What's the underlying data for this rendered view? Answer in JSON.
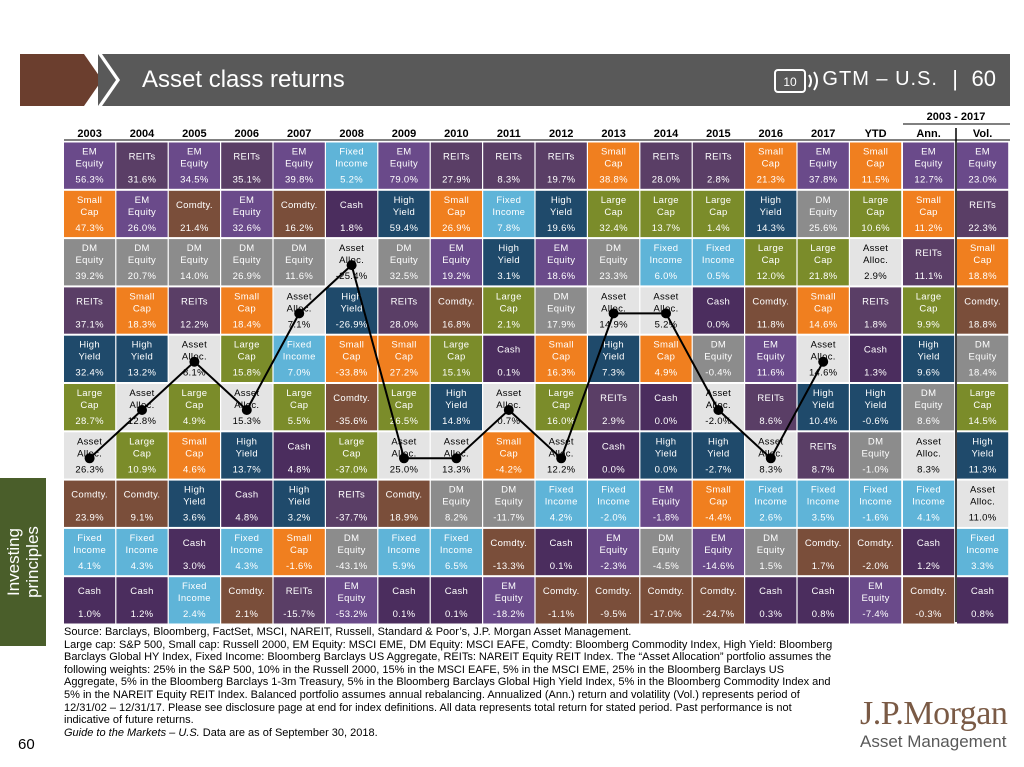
{
  "header": {
    "title": "Asset class returns",
    "brand": "GTM – U.S.",
    "separator": "|",
    "page": "60",
    "icon": "cassette-10-icon",
    "icon_label": "10"
  },
  "sidebar": {
    "label_line1": "Investing",
    "label_line2": "principles"
  },
  "colors": {
    "EM Equity": "#6a4a8a",
    "REITs": "#5a3e66",
    "Small Cap": "#f07f1f",
    "DM Equity": "#8c8c8c",
    "Comdty.": "#7a4e3a",
    "Cash": "#4b2d5e",
    "High Yield": "#1f4a6b",
    "Large Cap": "#7b8c2a",
    "Fixed Income": "#5fb4d8",
    "Asset Alloc.": "#e4e4e4",
    "header": "#595959",
    "accent": "#6b3e2e"
  },
  "chart_data": {
    "type": "table",
    "title": "Asset class returns",
    "period_header": "2003 - 2017",
    "columns": [
      "2003",
      "2004",
      "2005",
      "2006",
      "2007",
      "2008",
      "2009",
      "2010",
      "2011",
      "2012",
      "2013",
      "2014",
      "2015",
      "2016",
      "2017",
      "YTD",
      "Ann.",
      "Vol."
    ],
    "grid": [
      [
        [
          "EM\nEquity",
          "56.3%"
        ],
        [
          "REITs",
          "31.6%"
        ],
        [
          "EM\nEquity",
          "34.5%"
        ],
        [
          "REITs",
          "35.1%"
        ],
        [
          "EM\nEquity",
          "39.8%"
        ],
        [
          "Fixed\nIncome",
          "5.2%"
        ],
        [
          "EM\nEquity",
          "79.0%"
        ],
        [
          "REITs",
          "27.9%"
        ],
        [
          "REITs",
          "8.3%"
        ],
        [
          "REITs",
          "19.7%"
        ],
        [
          "Small\nCap",
          "38.8%"
        ],
        [
          "REITs",
          "28.0%"
        ],
        [
          "REITs",
          "2.8%"
        ],
        [
          "Small\nCap",
          "21.3%"
        ],
        [
          "EM\nEquity",
          "37.8%"
        ],
        [
          "Small\nCap",
          "11.5%"
        ],
        [
          "EM\nEquity",
          "12.7%"
        ],
        [
          "EM\nEquity",
          "23.0%"
        ]
      ],
      [
        [
          "Small\nCap",
          "47.3%"
        ],
        [
          "EM\nEquity",
          "26.0%"
        ],
        [
          "Comdty.",
          "21.4%"
        ],
        [
          "EM\nEquity",
          "32.6%"
        ],
        [
          "Comdty.",
          "16.2%"
        ],
        [
          "Cash",
          "1.8%"
        ],
        [
          "High\nYield",
          "59.4%"
        ],
        [
          "Small\nCap",
          "26.9%"
        ],
        [
          "Fixed\nIncome",
          "7.8%"
        ],
        [
          "High\nYield",
          "19.6%"
        ],
        [
          "Large\nCap",
          "32.4%"
        ],
        [
          "Large\nCap",
          "13.7%"
        ],
        [
          "Large\nCap",
          "1.4%"
        ],
        [
          "High\nYield",
          "14.3%"
        ],
        [
          "DM\nEquity",
          "25.6%"
        ],
        [
          "Large\nCap",
          "10.6%"
        ],
        [
          "Small\nCap",
          "11.2%"
        ],
        [
          "REITs",
          "22.3%"
        ]
      ],
      [
        [
          "DM\nEquity",
          "39.2%"
        ],
        [
          "DM\nEquity",
          "20.7%"
        ],
        [
          "DM\nEquity",
          "14.0%"
        ],
        [
          "DM\nEquity",
          "26.9%"
        ],
        [
          "DM\nEquity",
          "11.6%"
        ],
        [
          "Asset\nAlloc.",
          "-25.4%"
        ],
        [
          "DM\nEquity",
          "32.5%"
        ],
        [
          "EM\nEquity",
          "19.2%"
        ],
        [
          "High\nYield",
          "3.1%"
        ],
        [
          "EM\nEquity",
          "18.6%"
        ],
        [
          "DM\nEquity",
          "23.3%"
        ],
        [
          "Fixed\nIncome",
          "6.0%"
        ],
        [
          "Fixed\nIncome",
          "0.5%"
        ],
        [
          "Large\nCap",
          "12.0%"
        ],
        [
          "Large\nCap",
          "21.8%"
        ],
        [
          "Asset\nAlloc.",
          "2.9%"
        ],
        [
          "REITs",
          "11.1%"
        ],
        [
          "Small\nCap",
          "18.8%"
        ]
      ],
      [
        [
          "REITs",
          "37.1%"
        ],
        [
          "Small\nCap",
          "18.3%"
        ],
        [
          "REITs",
          "12.2%"
        ],
        [
          "Small\nCap",
          "18.4%"
        ],
        [
          "Asset\nAlloc.",
          "7.1%"
        ],
        [
          "High\nYield",
          "-26.9%"
        ],
        [
          "REITs",
          "28.0%"
        ],
        [
          "Comdty.",
          "16.8%"
        ],
        [
          "Large\nCap",
          "2.1%"
        ],
        [
          "DM\nEquity",
          "17.9%"
        ],
        [
          "Asset\nAlloc.",
          "14.9%"
        ],
        [
          "Asset\nAlloc.",
          "5.2%"
        ],
        [
          "Cash",
          "0.0%"
        ],
        [
          "Comdty.",
          "11.8%"
        ],
        [
          "Small\nCap",
          "14.6%"
        ],
        [
          "REITs",
          "1.8%"
        ],
        [
          "Large\nCap",
          "9.9%"
        ],
        [
          "Comdty.",
          "18.8%"
        ]
      ],
      [
        [
          "High\nYield",
          "32.4%"
        ],
        [
          "High\nYield",
          "13.2%"
        ],
        [
          "Asset\nAlloc.",
          "8.1%"
        ],
        [
          "Large\nCap",
          "15.8%"
        ],
        [
          "Fixed\nIncome",
          "7.0%"
        ],
        [
          "Small\nCap",
          "-33.8%"
        ],
        [
          "Small\nCap",
          "27.2%"
        ],
        [
          "Large\nCap",
          "15.1%"
        ],
        [
          "Cash",
          "0.1%"
        ],
        [
          "Small\nCap",
          "16.3%"
        ],
        [
          "High\nYield",
          "7.3%"
        ],
        [
          "Small\nCap",
          "4.9%"
        ],
        [
          "DM\nEquity",
          "-0.4%"
        ],
        [
          "EM\nEquity",
          "11.6%"
        ],
        [
          "Asset\nAlloc.",
          "14.6%"
        ],
        [
          "Cash",
          "1.3%"
        ],
        [
          "High\nYield",
          "9.6%"
        ],
        [
          "DM\nEquity",
          "18.4%"
        ]
      ],
      [
        [
          "Large\nCap",
          "28.7%"
        ],
        [
          "Asset\nAlloc.",
          "12.8%"
        ],
        [
          "Large\nCap",
          "4.9%"
        ],
        [
          "Asset\nAlloc.",
          "15.3%"
        ],
        [
          "Large\nCap",
          "5.5%"
        ],
        [
          "Comdty.",
          "-35.6%"
        ],
        [
          "Large\nCap",
          "26.5%"
        ],
        [
          "High\nYield",
          "14.8%"
        ],
        [
          "Asset\nAlloc.",
          "0.7%"
        ],
        [
          "Large\nCap",
          "16.0%"
        ],
        [
          "REITs",
          "2.9%"
        ],
        [
          "Cash",
          "0.0%"
        ],
        [
          "Asset\nAlloc.",
          "-2.0%"
        ],
        [
          "REITs",
          "8.6%"
        ],
        [
          "High\nYield",
          "10.4%"
        ],
        [
          "High\nYield",
          "-0.6%"
        ],
        [
          "DM\nEquity",
          "8.6%"
        ],
        [
          "Large\nCap",
          "14.5%"
        ]
      ],
      [
        [
          "Asset\nAlloc.",
          "26.3%"
        ],
        [
          "Large\nCap",
          "10.9%"
        ],
        [
          "Small\nCap",
          "4.6%"
        ],
        [
          "High\nYield",
          "13.7%"
        ],
        [
          "Cash",
          "4.8%"
        ],
        [
          "Large\nCap",
          "-37.0%"
        ],
        [
          "Asset\nAlloc.",
          "25.0%"
        ],
        [
          "Asset\nAlloc.",
          "13.3%"
        ],
        [
          "Small\nCap",
          "-4.2%"
        ],
        [
          "Asset\nAlloc.",
          "12.2%"
        ],
        [
          "Cash",
          "0.0%"
        ],
        [
          "High\nYield",
          "0.0%"
        ],
        [
          "High\nYield",
          "-2.7%"
        ],
        [
          "Asset\nAlloc.",
          "8.3%"
        ],
        [
          "REITs",
          "8.7%"
        ],
        [
          "DM\nEquity",
          "-1.0%"
        ],
        [
          "Asset\nAlloc.",
          "8.3%"
        ],
        [
          "High\nYield",
          "11.3%"
        ]
      ],
      [
        [
          "Comdty.",
          "23.9%"
        ],
        [
          "Comdty.",
          "9.1%"
        ],
        [
          "High\nYield",
          "3.6%"
        ],
        [
          "Cash",
          "4.8%"
        ],
        [
          "High\nYield",
          "3.2%"
        ],
        [
          "REITs",
          "-37.7%"
        ],
        [
          "Comdty.",
          "18.9%"
        ],
        [
          "DM\nEquity",
          "8.2%"
        ],
        [
          "DM\nEquity",
          "-11.7%"
        ],
        [
          "Fixed\nIncome",
          "4.2%"
        ],
        [
          "Fixed\nIncome",
          "-2.0%"
        ],
        [
          "EM\nEquity",
          "-1.8%"
        ],
        [
          "Small\nCap",
          "-4.4%"
        ],
        [
          "Fixed\nIncome",
          "2.6%"
        ],
        [
          "Fixed\nIncome",
          "3.5%"
        ],
        [
          "Fixed\nIncome",
          "-1.6%"
        ],
        [
          "Fixed\nIncome",
          "4.1%"
        ],
        [
          "Asset\nAlloc.",
          "11.0%"
        ]
      ],
      [
        [
          "Fixed\nIncome",
          "4.1%"
        ],
        [
          "Fixed\nIncome",
          "4.3%"
        ],
        [
          "Cash",
          "3.0%"
        ],
        [
          "Fixed\nIncome",
          "4.3%"
        ],
        [
          "Small\nCap",
          "-1.6%"
        ],
        [
          "DM\nEquity",
          "-43.1%"
        ],
        [
          "Fixed\nIncome",
          "5.9%"
        ],
        [
          "Fixed\nIncome",
          "6.5%"
        ],
        [
          "Comdty.",
          "-13.3%"
        ],
        [
          "Cash",
          "0.1%"
        ],
        [
          "EM\nEquity",
          "-2.3%"
        ],
        [
          "DM\nEquity",
          "-4.5%"
        ],
        [
          "EM\nEquity",
          "-14.6%"
        ],
        [
          "DM\nEquity",
          "1.5%"
        ],
        [
          "Comdty.",
          "1.7%"
        ],
        [
          "Comdty.",
          "-2.0%"
        ],
        [
          "Cash",
          "1.2%"
        ],
        [
          "Fixed\nIncome",
          "3.3%"
        ]
      ],
      [
        [
          "Cash",
          "1.0%"
        ],
        [
          "Cash",
          "1.2%"
        ],
        [
          "Fixed\nIncome",
          "2.4%"
        ],
        [
          "Comdty.",
          "2.1%"
        ],
        [
          "REITs",
          "-15.7%"
        ],
        [
          "EM\nEquity",
          "-53.2%"
        ],
        [
          "Cash",
          "0.1%"
        ],
        [
          "Cash",
          "0.1%"
        ],
        [
          "EM\nEquity",
          "-18.2%"
        ],
        [
          "Comdty.",
          "-1.1%"
        ],
        [
          "Comdty.",
          "-9.5%"
        ],
        [
          "Comdty.",
          "-17.0%"
        ],
        [
          "Comdty.",
          "-24.7%"
        ],
        [
          "Cash",
          "0.3%"
        ],
        [
          "Cash",
          "0.8%"
        ],
        [
          "EM\nEquity",
          "-7.4%"
        ],
        [
          "Comdty.",
          "-0.3%"
        ],
        [
          "Cash",
          "0.8%"
        ]
      ]
    ],
    "asset_alloc_rank_by_year": [
      7,
      6,
      5,
      6,
      4,
      3,
      7,
      7,
      6,
      7,
      4,
      4,
      6,
      7,
      5
    ]
  },
  "footer": {
    "source_line": "Source: Barclays, Bloomberg, FactSet, MSCI, NAREIT, Russell, Standard & Poor’s, J.P. Morgan Asset Management.",
    "notes": "Large cap: S&P 500, Small cap: Russell 2000, EM Equity: MSCI EME, DM Equity: MSCI EAFE, Comdty: Bloomberg Commodity Index, High Yield: Bloomberg Barclays Global HY Index, Fixed Income: Bloomberg Barclays US Aggregate, REITs: NAREIT Equity REIT Index. The “Asset Allocation” portfolio assumes the following weights: 25% in the S&P 500, 10% in the Russell 2000, 15% in the MSCI EAFE, 5% in the MSCI EME, 25% in the Bloomberg Barclays US Aggregate, 5% in the Bloomberg Barclays 1-3m Treasury, 5% in the Bloomberg Barclays Global High Yield Index, 5% in the Bloomberg Commodity Index and 5% in the NAREIT Equity REIT Index. Balanced portfolio assumes annual rebalancing. Annualized (Ann.) return and volatility (Vol.) represents period of 12/31/02 – 12/31/17. Please see disclosure page at end for index definitions. All data represents total return for stated period. Past performance is not indicative of future returns.",
    "guide_italic": "Guide to the Markets – U.S.",
    "guide_rest": " Data are as of September 30, 2018.",
    "page_number": "60"
  },
  "logo": {
    "line1": "J.P.Morgan",
    "line2": "Asset Management"
  }
}
